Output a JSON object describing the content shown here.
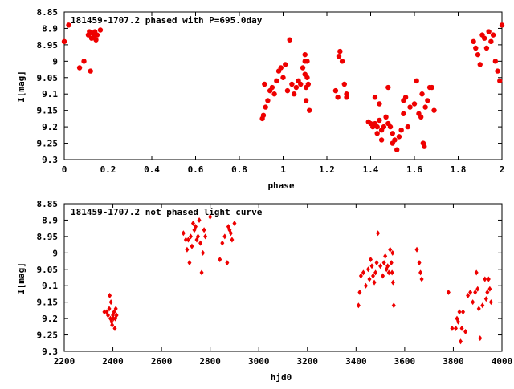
{
  "chart_data": [
    {
      "type": "scatter",
      "title": "181459-1707.2 phased with P=695.0day",
      "xlabel": "phase",
      "ylabel": "I[mag]",
      "xlim": [
        0,
        2
      ],
      "ylim": [
        8.85,
        9.3
      ],
      "y_inverted": true,
      "x_ticks": [
        "0",
        "0.2",
        "0.4",
        "0.6",
        "0.8",
        "1",
        "1.2",
        "1.4",
        "1.6",
        "1.8",
        "2"
      ],
      "y_ticks": [
        "8.85",
        "8.9",
        "8.95",
        "9",
        "9.05",
        "9.1",
        "9.15",
        "9.2",
        "9.25",
        "9.3"
      ],
      "grid": false,
      "marker": "filled-circle",
      "color": "#ee0000",
      "series": [
        {
          "points": [
            [
              0.0,
              8.94
            ],
            [
              0.02,
              8.89
            ],
            [
              0.07,
              9.02
            ],
            [
              0.09,
              9.0
            ],
            [
              0.11,
              8.92
            ],
            [
              0.115,
              8.91
            ],
            [
              0.12,
              9.03
            ],
            [
              0.125,
              8.93
            ],
            [
              0.13,
              8.915
            ],
            [
              0.135,
              8.925
            ],
            [
              0.14,
              8.91
            ],
            [
              0.145,
              8.935
            ],
            [
              0.15,
              8.92
            ],
            [
              0.165,
              8.905
            ],
            [
              0.905,
              9.175
            ],
            [
              0.91,
              9.165
            ],
            [
              0.915,
              9.07
            ],
            [
              0.92,
              9.14
            ],
            [
              0.93,
              9.12
            ],
            [
              0.94,
              9.09
            ],
            [
              0.95,
              9.08
            ],
            [
              0.96,
              9.1
            ],
            [
              0.97,
              9.06
            ],
            [
              0.98,
              9.03
            ],
            [
              0.99,
              9.02
            ],
            [
              1.0,
              9.05
            ],
            [
              1.01,
              9.01
            ],
            [
              1.02,
              9.09
            ],
            [
              1.03,
              8.935
            ],
            [
              1.04,
              9.07
            ],
            [
              1.05,
              9.1
            ],
            [
              1.06,
              9.08
            ],
            [
              1.07,
              9.06
            ],
            [
              1.08,
              9.07
            ],
            [
              1.09,
              9.02
            ],
            [
              1.1,
              8.98
            ],
            [
              1.1,
              9.0
            ],
            [
              1.1,
              9.04
            ],
            [
              1.105,
              9.08
            ],
            [
              1.105,
              9.12
            ],
            [
              1.11,
              9.0
            ],
            [
              1.11,
              9.05
            ],
            [
              1.115,
              9.07
            ],
            [
              1.12,
              9.15
            ],
            [
              1.24,
              9.09
            ],
            [
              1.25,
              9.11
            ],
            [
              1.255,
              8.985
            ],
            [
              1.26,
              8.97
            ],
            [
              1.27,
              9.0
            ],
            [
              1.28,
              9.07
            ],
            [
              1.29,
              9.1
            ],
            [
              1.29,
              9.11
            ],
            [
              1.39,
              9.185
            ],
            [
              1.4,
              9.19
            ],
            [
              1.41,
              9.2
            ],
            [
              1.42,
              9.11
            ],
            [
              1.42,
              9.19
            ],
            [
              1.43,
              9.2
            ],
            [
              1.43,
              9.22
            ],
            [
              1.44,
              9.13
            ],
            [
              1.44,
              9.18
            ],
            [
              1.45,
              9.21
            ],
            [
              1.45,
              9.24
            ],
            [
              1.46,
              9.2
            ],
            [
              1.47,
              9.17
            ],
            [
              1.48,
              9.19
            ],
            [
              1.48,
              9.08
            ],
            [
              1.49,
              9.2
            ],
            [
              1.5,
              9.22
            ],
            [
              1.5,
              9.25
            ],
            [
              1.51,
              9.24
            ],
            [
              1.52,
              9.27
            ],
            [
              1.53,
              9.23
            ],
            [
              1.54,
              9.21
            ],
            [
              1.55,
              9.16
            ],
            [
              1.55,
              9.12
            ],
            [
              1.56,
              9.11
            ],
            [
              1.57,
              9.2
            ],
            [
              1.58,
              9.14
            ],
            [
              1.6,
              9.13
            ],
            [
              1.61,
              9.06
            ],
            [
              1.62,
              9.16
            ],
            [
              1.63,
              9.17
            ],
            [
              1.635,
              9.1
            ],
            [
              1.64,
              9.25
            ],
            [
              1.645,
              9.26
            ],
            [
              1.65,
              9.14
            ],
            [
              1.66,
              9.12
            ],
            [
              1.67,
              9.08
            ],
            [
              1.68,
              9.08
            ],
            [
              1.69,
              9.15
            ],
            [
              1.87,
              8.94
            ],
            [
              1.88,
              8.96
            ],
            [
              1.89,
              8.98
            ],
            [
              1.9,
              9.01
            ],
            [
              1.91,
              8.92
            ],
            [
              1.92,
              8.93
            ],
            [
              1.93,
              8.96
            ],
            [
              1.94,
              8.91
            ],
            [
              1.95,
              8.94
            ],
            [
              1.96,
              8.92
            ],
            [
              1.97,
              9.0
            ],
            [
              1.98,
              9.03
            ],
            [
              1.99,
              9.06
            ],
            [
              2.0,
              8.89
            ]
          ]
        }
      ]
    },
    {
      "type": "scatter",
      "title": "181459-1707.2 not phased light curve",
      "xlabel": "hjd0",
      "ylabel": "I[mag]",
      "xlim": [
        2200,
        4000
      ],
      "ylim": [
        8.85,
        9.3
      ],
      "y_inverted": true,
      "x_ticks": [
        "2200",
        "2400",
        "2600",
        "2800",
        "3000",
        "3200",
        "3400",
        "3600",
        "3800",
        "4000"
      ],
      "y_ticks": [
        "8.85",
        "8.9",
        "8.95",
        "9",
        "9.05",
        "9.1",
        "9.15",
        "9.2",
        "9.25",
        "9.3"
      ],
      "grid": false,
      "marker": "diamond",
      "color": "#ee0000",
      "series": [
        {
          "points": [
            [
              2365,
              9.18
            ],
            [
              2375,
              9.18
            ],
            [
              2380,
              9.19
            ],
            [
              2385,
              9.17
            ],
            [
              2387,
              9.13
            ],
            [
              2390,
              9.2
            ],
            [
              2392,
              9.15
            ],
            [
              2395,
              9.21
            ],
            [
              2397,
              9.22
            ],
            [
              2400,
              9.19
            ],
            [
              2402,
              9.2
            ],
            [
              2405,
              9.18
            ],
            [
              2408,
              9.23
            ],
            [
              2410,
              9.2
            ],
            [
              2412,
              9.17
            ],
            [
              2415,
              9.19
            ],
            [
              2690,
              8.94
            ],
            [
              2700,
              8.96
            ],
            [
              2705,
              8.99
            ],
            [
              2710,
              8.96
            ],
            [
              2715,
              9.03
            ],
            [
              2720,
              8.95
            ],
            [
              2725,
              8.98
            ],
            [
              2730,
              8.91
            ],
            [
              2735,
              8.93
            ],
            [
              2740,
              8.92
            ],
            [
              2745,
              8.96
            ],
            [
              2750,
              8.95
            ],
            [
              2755,
              8.9
            ],
            [
              2760,
              8.97
            ],
            [
              2765,
              9.06
            ],
            [
              2770,
              9.0
            ],
            [
              2775,
              8.93
            ],
            [
              2780,
              8.95
            ],
            [
              2800,
              8.89
            ],
            [
              2840,
              9.02
            ],
            [
              2850,
              8.97
            ],
            [
              2860,
              8.95
            ],
            [
              2870,
              9.03
            ],
            [
              2875,
              8.92
            ],
            [
              2880,
              8.93
            ],
            [
              2885,
              8.94
            ],
            [
              2890,
              8.96
            ],
            [
              2900,
              8.91
            ],
            [
              3410,
              9.16
            ],
            [
              3415,
              9.12
            ],
            [
              3420,
              9.07
            ],
            [
              3430,
              9.06
            ],
            [
              3440,
              9.1
            ],
            [
              3450,
              9.05
            ],
            [
              3455,
              9.08
            ],
            [
              3460,
              9.02
            ],
            [
              3465,
              9.04
            ],
            [
              3470,
              9.07
            ],
            [
              3475,
              9.09
            ],
            [
              3480,
              9.06
            ],
            [
              3485,
              9.03
            ],
            [
              3490,
              8.94
            ],
            [
              3500,
              9.04
            ],
            [
              3510,
              9.07
            ],
            [
              3515,
              9.03
            ],
            [
              3520,
              9.01
            ],
            [
              3525,
              9.05
            ],
            [
              3530,
              9.04
            ],
            [
              3535,
              9.06
            ],
            [
              3540,
              8.99
            ],
            [
              3545,
              9.03
            ],
            [
              3548,
              9.06
            ],
            [
              3550,
              9.0
            ],
            [
              3552,
              9.09
            ],
            [
              3555,
              9.16
            ],
            [
              3650,
              8.99
            ],
            [
              3660,
              9.03
            ],
            [
              3665,
              9.06
            ],
            [
              3670,
              9.08
            ],
            [
              3780,
              9.12
            ],
            [
              3795,
              9.23
            ],
            [
              3810,
              9.23
            ],
            [
              3815,
              9.2
            ],
            [
              3820,
              9.21
            ],
            [
              3825,
              9.18
            ],
            [
              3830,
              9.27
            ],
            [
              3835,
              9.23
            ],
            [
              3840,
              9.18
            ],
            [
              3850,
              9.24
            ],
            [
              3860,
              9.13
            ],
            [
              3870,
              9.12
            ],
            [
              3880,
              9.15
            ],
            [
              3890,
              9.12
            ],
            [
              3895,
              9.06
            ],
            [
              3900,
              9.11
            ],
            [
              3905,
              9.17
            ],
            [
              3910,
              9.26
            ],
            [
              3920,
              9.16
            ],
            [
              3930,
              9.08
            ],
            [
              3935,
              9.14
            ],
            [
              3940,
              9.12
            ],
            [
              3945,
              9.08
            ],
            [
              3950,
              9.11
            ],
            [
              3955,
              9.15
            ]
          ]
        }
      ]
    }
  ]
}
